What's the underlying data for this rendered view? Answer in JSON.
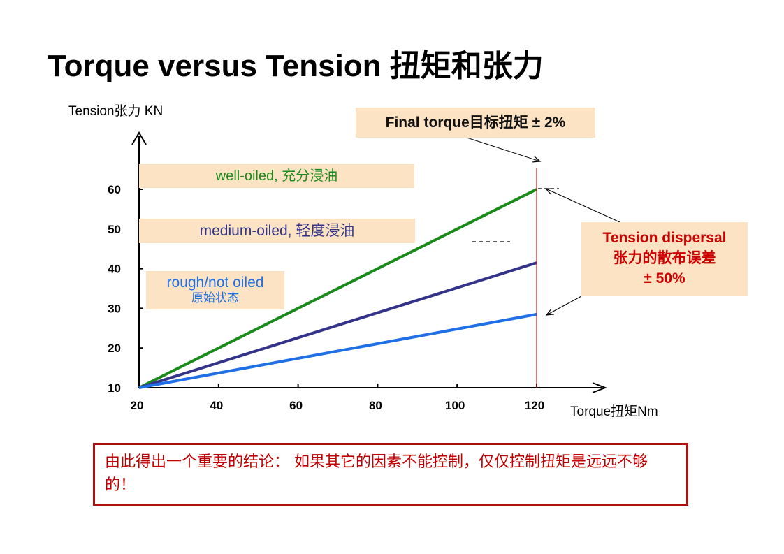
{
  "slide": {
    "title": "Torque versus Tension 扭矩和张力",
    "conclusion": "由此得出一个重要的结论： 如果其它的因素不能控制，仅仅控制扭矩是远远不够的！"
  },
  "boxes": {
    "final_torque": "Final torque目标扭矩 ± 2%",
    "well_oiled": "well-oiled, 充分浸油",
    "medium_oiled": "medium-oiled, 轻度浸油",
    "rough_line1": "rough/not oiled",
    "rough_line2": "原始状态",
    "dispersal_line1": "Tension dispersal",
    "dispersal_line2": "张力的散布误差",
    "dispersal_line3": "± 50%"
  },
  "colors": {
    "well_oiled": "#1a8a1a",
    "medium_oiled": "#33338a",
    "rough": "#1f6fe5",
    "box_fill": "#fbe3c3",
    "final_line": "#cc2222",
    "conclusion_border": "#b01010",
    "conclusion_text": "#c00000",
    "dispersal_text": "#cc0000"
  },
  "chart_data": {
    "type": "line",
    "xlabel": "Torque扭矩Nm",
    "ylabel": "Tension张力 KN",
    "xlim": [
      20,
      120
    ],
    "ylim": [
      10,
      60
    ],
    "xticks": [
      20,
      40,
      60,
      80,
      100,
      120
    ],
    "yticks": [
      10,
      20,
      30,
      40,
      50,
      60
    ],
    "series": [
      {
        "name": "well-oiled, 充分浸油",
        "x": [
          20,
          120
        ],
        "y": [
          10,
          60
        ]
      },
      {
        "name": "medium-oiled, 轻度浸油",
        "x": [
          20,
          120
        ],
        "y": [
          10,
          41.5
        ]
      },
      {
        "name": "rough/not oiled",
        "x": [
          20,
          120
        ],
        "y": [
          10,
          28.5
        ]
      }
    ],
    "final_torque_x": 120,
    "grid": false
  }
}
